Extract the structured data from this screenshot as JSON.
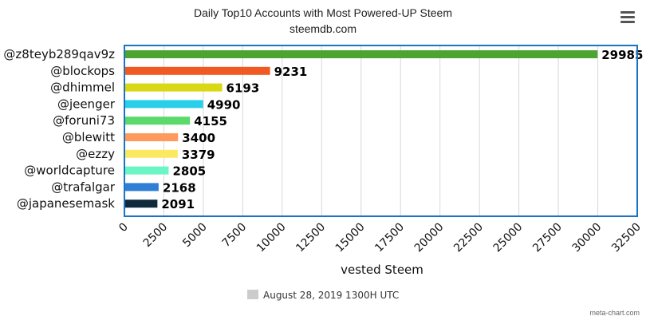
{
  "chart_data": {
    "type": "bar",
    "orientation": "horizontal",
    "title": "Daily Top10 Accounts with Most Powered-UP Steem",
    "subtitle": "steemdb.com",
    "categories": [
      "@z8teyb289qav9z",
      "@blockops",
      "@dhimmel",
      "@jeenger",
      "@foruni73",
      "@blewitt",
      "@ezzy",
      "@worldcapture",
      "@trafalgar",
      "@japanesemask"
    ],
    "series": [
      {
        "name": "August 28, 2019 1300H UTC",
        "values": [
          29985,
          9231,
          6193,
          4990,
          4155,
          3400,
          3379,
          2805,
          2168,
          2091
        ],
        "colors": [
          "#4ea431",
          "#f05a22",
          "#d9d812",
          "#29cfe8",
          "#5bd96b",
          "#ff9a5e",
          "#fce962",
          "#6cf5c5",
          "#2f7fd6",
          "#0e2a3c"
        ]
      }
    ],
    "xlabel": "vested Steem",
    "ylabel": "",
    "xlim": [
      0,
      32500
    ],
    "ticks": [
      "0",
      "2500",
      "5000",
      "7500",
      "10000",
      "12500",
      "15000",
      "17500",
      "20000",
      "22500",
      "25000",
      "27500",
      "30000",
      "32500"
    ],
    "grid": true,
    "legend_position": "bottom-center",
    "legend_color": "#cccccc",
    "plot_border_color": "#1a73c4"
  },
  "credit": "meta-chart.com",
  "menu_icon": "hamburger-menu-icon"
}
